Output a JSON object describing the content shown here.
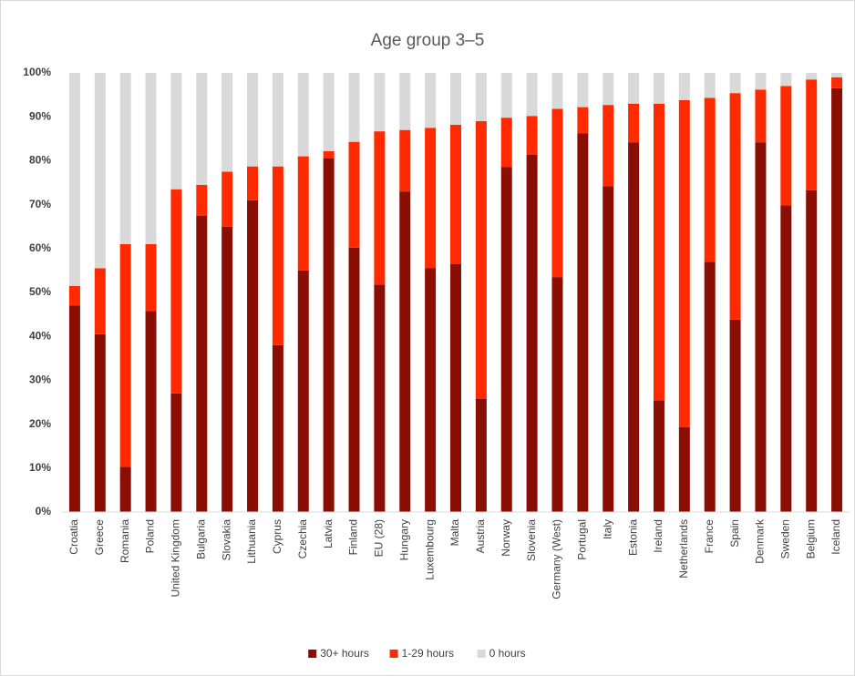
{
  "chart_data": {
    "type": "stacked_bar",
    "title": "Age group 3–5",
    "categories": [
      "Croatia",
      "Greece",
      "Romania",
      "Poland",
      "United Kingdom",
      "Bulgaria",
      "Slovakia",
      "Lithuania",
      "Cyprus",
      "Czechia",
      "Latvia",
      "Finland",
      "EU (28)",
      "Hungary",
      "Luxembourg",
      "Malta",
      "Austria",
      "Norway",
      "Slovenia",
      "Germany (West)",
      "Portugal",
      "Italy",
      "Estonia",
      "Ireland",
      "Netherlands",
      "France",
      "Spain",
      "Denmark",
      "Sweden",
      "Belgium",
      "Iceland"
    ],
    "series": [
      {
        "name": "30+ hours",
        "color": "#8b0e04",
        "values": [
          47,
          40.5,
          10.3,
          45.8,
          27,
          67.5,
          65,
          71,
          38,
          55,
          80.5,
          60.2,
          51.8,
          73,
          55.5,
          56.5,
          25.8,
          78.6,
          81.4,
          53.5,
          86.2,
          74.2,
          84.2,
          25.4,
          19.3,
          57,
          43.8,
          84.2,
          69.8,
          73.3,
          96.5
        ]
      },
      {
        "name": "1-29 hours",
        "color": "#ff2a00",
        "values": [
          4.5,
          15,
          50.7,
          15.2,
          46.5,
          7,
          12.5,
          7.7,
          40.7,
          26,
          1.7,
          24.1,
          34.9,
          14,
          32,
          31.7,
          63.2,
          11.2,
          8.8,
          38.3,
          6,
          18.5,
          8.8,
          67.6,
          74.5,
          37.3,
          51.6,
          12,
          27.2,
          25.2,
          2.5
        ]
      },
      {
        "name": "0 hours",
        "color": "#d9d9d9",
        "values": [
          48.5,
          44.5,
          39,
          39,
          26.5,
          25.5,
          22.5,
          21.3,
          21.3,
          19,
          17.8,
          15.7,
          13.3,
          13,
          12.5,
          11.8,
          11,
          10.2,
          9.8,
          8.2,
          7.8,
          7.3,
          7,
          7,
          6.2,
          5.7,
          4.6,
          3.8,
          3,
          1.5,
          1
        ]
      }
    ],
    "ylim": [
      0,
      100
    ],
    "yticks": [
      {
        "value": 0,
        "label": "0%"
      },
      {
        "value": 10,
        "label": "10%"
      },
      {
        "value": 20,
        "label": "20%"
      },
      {
        "value": 30,
        "label": "30%"
      },
      {
        "value": 40,
        "label": "40%"
      },
      {
        "value": 50,
        "label": "50%"
      },
      {
        "value": 60,
        "label": "60%"
      },
      {
        "value": 70,
        "label": "70%"
      },
      {
        "value": 80,
        "label": "80%"
      },
      {
        "value": 90,
        "label": "90%"
      },
      {
        "value": 100,
        "label": "100%"
      }
    ],
    "legend": "bottom"
  }
}
